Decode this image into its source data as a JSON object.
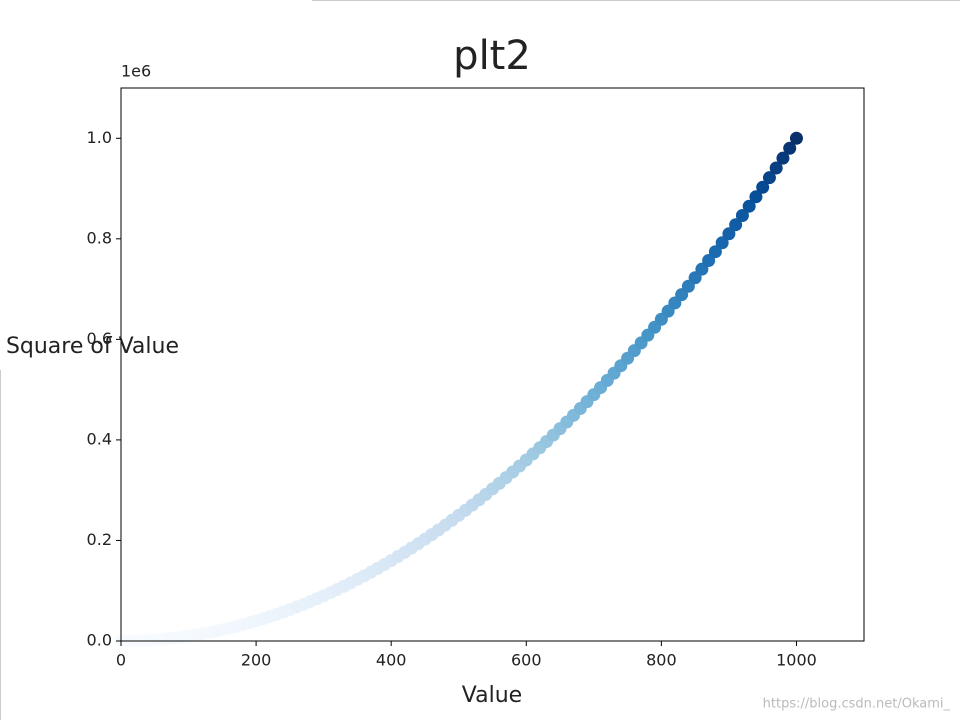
{
  "chart_data": {
    "type": "scatter",
    "title": "plt2",
    "xlabel": "Value",
    "ylabel": "Square of Value",
    "y_offset_label": "1e6",
    "colormap": "Blues",
    "watermark": "https://blog.csdn.net/Okami_",
    "xlim": [
      0,
      1100
    ],
    "ylim": [
      0,
      1100000
    ],
    "xticks": [
      0,
      200,
      400,
      600,
      800,
      1000
    ],
    "yticks": [
      {
        "value": 0,
        "label": "0.0"
      },
      {
        "value": 200000,
        "label": "0.2"
      },
      {
        "value": 400000,
        "label": "0.4"
      },
      {
        "value": 600000,
        "label": "0.6"
      },
      {
        "value": 800000,
        "label": "0.8"
      },
      {
        "value": 1000000,
        "label": "1.0"
      }
    ],
    "x": [
      0,
      10,
      20,
      30,
      40,
      50,
      60,
      70,
      80,
      90,
      100,
      110,
      120,
      130,
      140,
      150,
      160,
      170,
      180,
      190,
      200,
      210,
      220,
      230,
      240,
      250,
      260,
      270,
      280,
      290,
      300,
      310,
      320,
      330,
      340,
      350,
      360,
      370,
      380,
      390,
      400,
      410,
      420,
      430,
      440,
      450,
      460,
      470,
      480,
      490,
      500,
      510,
      520,
      530,
      540,
      550,
      560,
      570,
      580,
      590,
      600,
      610,
      620,
      630,
      640,
      650,
      660,
      670,
      680,
      690,
      700,
      710,
      720,
      730,
      740,
      750,
      760,
      770,
      780,
      790,
      800,
      810,
      820,
      830,
      840,
      850,
      860,
      870,
      880,
      890,
      900,
      910,
      920,
      930,
      940,
      950,
      960,
      970,
      980,
      990,
      1000
    ],
    "y": [
      0,
      100,
      400,
      900,
      1600,
      2500,
      3600,
      4900,
      6400,
      8100,
      10000,
      12100,
      14400,
      16900,
      19600,
      22500,
      25600,
      28900,
      32400,
      36100,
      40000,
      44100,
      48400,
      52900,
      57600,
      62500,
      67600,
      72900,
      78400,
      84100,
      90000,
      96100,
      102400,
      108900,
      115600,
      122500,
      129600,
      136900,
      144400,
      152100,
      160000,
      168100,
      176400,
      184900,
      193600,
      202500,
      211600,
      220900,
      230400,
      240100,
      250000,
      260100,
      270400,
      280900,
      291600,
      302500,
      313600,
      324900,
      336400,
      348100,
      360000,
      372100,
      384400,
      396900,
      409600,
      422500,
      435600,
      448900,
      462400,
      476100,
      490000,
      504100,
      518400,
      532900,
      547600,
      562500,
      577600,
      592900,
      608400,
      624100,
      640000,
      656100,
      672400,
      688900,
      705600,
      722500,
      739600,
      756900,
      774400,
      792100,
      810000,
      828100,
      846400,
      864900,
      883600,
      902500,
      921600,
      940900,
      960400,
      980100,
      1000000
    ]
  }
}
